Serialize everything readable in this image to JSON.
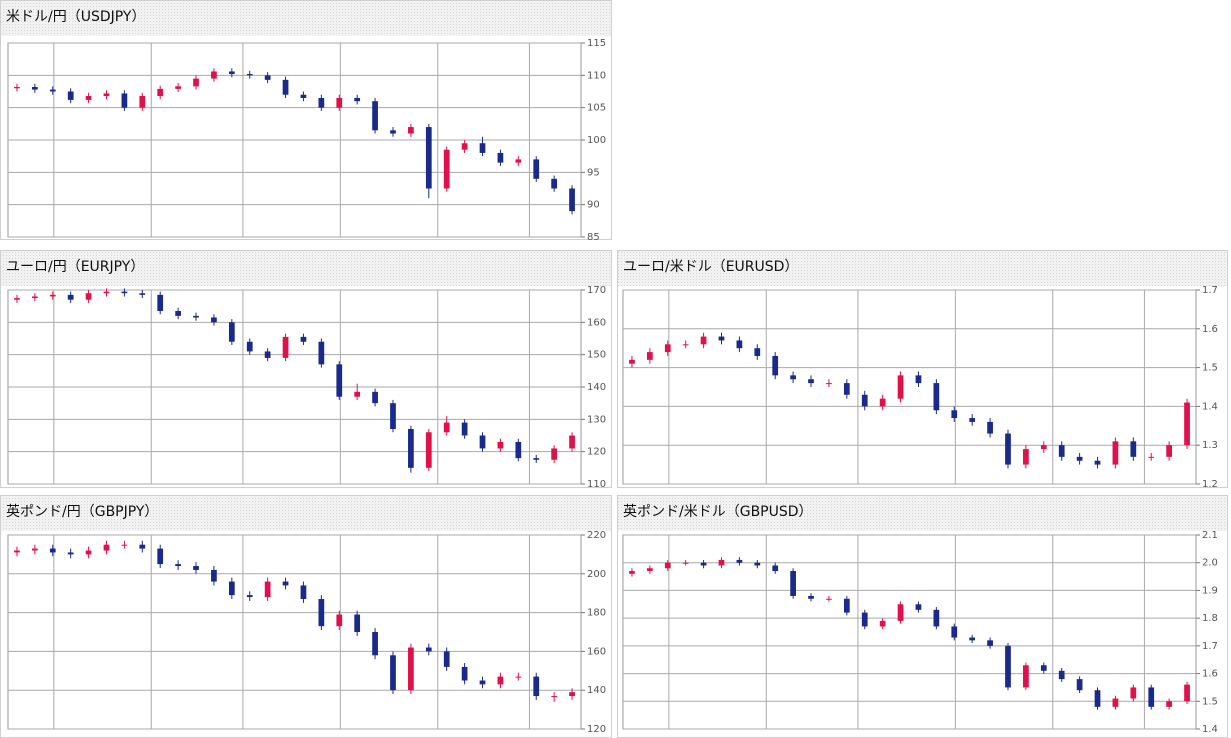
{
  "chart_data": [
    {
      "type": "candlestick",
      "title": "米ドル/円（USDJPY）",
      "up_color": "#e0104a",
      "down_color": "#1a2a8a",
      "grid": true,
      "ylim": [
        85,
        115
      ],
      "yticks": [
        85,
        90,
        95,
        100,
        105,
        110,
        115
      ],
      "open": [
        108.0,
        108.2,
        107.8,
        107.5,
        106.2,
        106.8,
        107.2,
        105.0,
        106.8,
        107.9,
        108.3,
        109.5,
        110.6,
        110.2,
        110.0,
        109.3,
        107.0,
        106.5,
        105.0,
        106.5,
        106.0,
        101.5,
        101.0,
        102.0,
        92.5,
        98.5,
        99.5,
        98.0,
        96.5,
        97.0,
        94.0,
        92.5
      ],
      "high": [
        108.7,
        108.7,
        108.3,
        108.0,
        107.3,
        107.7,
        107.7,
        107.3,
        108.4,
        108.8,
        110.0,
        111.1,
        111.1,
        110.7,
        110.5,
        109.8,
        107.5,
        107.0,
        107.0,
        107.0,
        106.5,
        102.0,
        102.5,
        102.5,
        99.0,
        100.0,
        100.5,
        98.5,
        97.5,
        97.5,
        94.5,
        93.0
      ],
      "low": [
        107.5,
        107.3,
        107.0,
        105.7,
        105.7,
        106.3,
        104.5,
        104.5,
        106.3,
        107.4,
        107.8,
        109.0,
        109.7,
        109.5,
        108.8,
        106.5,
        106.0,
        104.5,
        104.5,
        105.5,
        101.0,
        100.5,
        100.5,
        91.0,
        92.0,
        98.0,
        97.5,
        96.0,
        96.0,
        93.5,
        92.0,
        88.5
      ],
      "close": [
        108.2,
        107.8,
        107.5,
        106.2,
        106.8,
        107.2,
        105.0,
        106.8,
        107.9,
        108.3,
        109.5,
        110.6,
        110.2,
        110.0,
        109.3,
        107.0,
        106.5,
        105.0,
        106.5,
        106.0,
        101.5,
        101.0,
        102.0,
        92.5,
        98.5,
        99.5,
        98.0,
        96.5,
        97.0,
        94.0,
        92.5,
        89.0
      ]
    },
    {
      "type": "candlestick",
      "title": "ユーロ/円（EURJPY）",
      "up_color": "#e0104a",
      "down_color": "#1a2a8a",
      "grid": true,
      "ylim": [
        110,
        170
      ],
      "yticks": [
        110,
        120,
        130,
        140,
        150,
        160,
        170
      ],
      "open": [
        167.0,
        167.5,
        168.0,
        168.5,
        167.0,
        169.0,
        169.5,
        169.0,
        168.5,
        163.5,
        162.0,
        161.5,
        160.0,
        154.0,
        151.0,
        149.0,
        155.5,
        154.0,
        147.0,
        137.0,
        138.5,
        135.0,
        127.0,
        115.0,
        126.0,
        129.0,
        125.0,
        121.0,
        123.0,
        118.0,
        117.5,
        121.0
      ],
      "high": [
        168.5,
        169.0,
        169.5,
        169.5,
        170.0,
        170.5,
        170.5,
        170.0,
        169.5,
        164.5,
        163.0,
        162.5,
        161.0,
        155.0,
        152.0,
        156.5,
        156.5,
        155.0,
        148.0,
        141.0,
        139.5,
        136.0,
        128.0,
        127.0,
        131.0,
        130.0,
        126.0,
        124.0,
        124.0,
        119.0,
        122.0,
        126.0
      ],
      "low": [
        166.0,
        166.5,
        167.0,
        166.0,
        166.0,
        168.0,
        168.0,
        167.5,
        162.5,
        161.0,
        160.5,
        159.0,
        153.0,
        150.0,
        148.0,
        148.0,
        153.0,
        146.0,
        136.0,
        136.0,
        134.0,
        126.0,
        113.5,
        114.0,
        125.0,
        124.0,
        120.0,
        120.0,
        117.0,
        116.5,
        116.5,
        120.0
      ],
      "close": [
        167.5,
        168.0,
        168.5,
        167.0,
        169.0,
        169.5,
        169.0,
        168.5,
        163.5,
        162.0,
        161.5,
        160.0,
        154.0,
        151.0,
        149.0,
        155.5,
        154.0,
        147.0,
        137.0,
        138.5,
        135.0,
        127.0,
        115.0,
        126.0,
        129.0,
        125.0,
        121.0,
        123.0,
        118.0,
        117.5,
        121.0,
        125.0
      ]
    },
    {
      "type": "candlestick",
      "title": "ユーロ/米ドル（EURUSD）",
      "up_color": "#e0104a",
      "down_color": "#1a2a8a",
      "grid": true,
      "ylim": [
        1.2,
        1.7
      ],
      "yticks": [
        1.2,
        1.3,
        1.4,
        1.5,
        1.6,
        1.7
      ],
      "open": [
        1.51,
        1.52,
        1.54,
        1.56,
        1.56,
        1.58,
        1.57,
        1.55,
        1.53,
        1.48,
        1.47,
        1.46,
        1.46,
        1.43,
        1.4,
        1.42,
        1.48,
        1.46,
        1.39,
        1.37,
        1.36,
        1.33,
        1.25,
        1.29,
        1.3,
        1.27,
        1.26,
        1.25,
        1.31,
        1.27,
        1.27,
        1.3
      ],
      "high": [
        1.53,
        1.55,
        1.57,
        1.57,
        1.59,
        1.59,
        1.58,
        1.56,
        1.54,
        1.49,
        1.48,
        1.47,
        1.47,
        1.44,
        1.43,
        1.49,
        1.49,
        1.47,
        1.4,
        1.38,
        1.37,
        1.34,
        1.3,
        1.31,
        1.31,
        1.28,
        1.27,
        1.32,
        1.32,
        1.28,
        1.31,
        1.42
      ],
      "low": [
        1.5,
        1.51,
        1.53,
        1.55,
        1.55,
        1.56,
        1.54,
        1.52,
        1.47,
        1.46,
        1.45,
        1.45,
        1.42,
        1.39,
        1.39,
        1.41,
        1.45,
        1.38,
        1.36,
        1.35,
        1.32,
        1.24,
        1.24,
        1.28,
        1.26,
        1.25,
        1.24,
        1.24,
        1.26,
        1.26,
        1.26,
        1.29
      ],
      "close": [
        1.52,
        1.54,
        1.56,
        1.56,
        1.58,
        1.57,
        1.55,
        1.53,
        1.48,
        1.47,
        1.46,
        1.46,
        1.43,
        1.4,
        1.42,
        1.48,
        1.46,
        1.39,
        1.37,
        1.36,
        1.33,
        1.25,
        1.29,
        1.3,
        1.27,
        1.26,
        1.25,
        1.31,
        1.27,
        1.27,
        1.3,
        1.41
      ]
    },
    {
      "type": "candlestick",
      "title": "英ポンド/円（GBPJPY）",
      "up_color": "#e0104a",
      "down_color": "#1a2a8a",
      "grid": true,
      "ylim": [
        120,
        220
      ],
      "yticks": [
        120,
        140,
        160,
        180,
        200,
        220
      ],
      "open": [
        211,
        212,
        213,
        211,
        210,
        212,
        215,
        215,
        213,
        205,
        204,
        202,
        196,
        189,
        188,
        196,
        194,
        187,
        173,
        179,
        170,
        158,
        140,
        162,
        160,
        152,
        145,
        143,
        147,
        147,
        137,
        137
      ],
      "high": [
        214,
        215,
        215,
        213,
        214,
        217,
        217,
        217,
        215,
        207,
        206,
        204,
        198,
        191,
        198,
        198,
        196,
        189,
        181,
        181,
        172,
        160,
        164,
        164,
        162,
        154,
        147,
        149,
        149,
        149,
        139,
        141
      ],
      "low": [
        209,
        210,
        209,
        208,
        208,
        210,
        213,
        211,
        203,
        202,
        200,
        194,
        187,
        186,
        186,
        192,
        185,
        171,
        171,
        168,
        156,
        138,
        138,
        158,
        150,
        143,
        141,
        141,
        145,
        135,
        134,
        135
      ],
      "close": [
        212,
        213,
        211,
        210,
        212,
        215,
        215,
        213,
        205,
        204,
        202,
        196,
        189,
        188,
        196,
        194,
        187,
        173,
        179,
        170,
        158,
        140,
        162,
        160,
        152,
        145,
        143,
        147,
        147,
        137,
        137,
        139
      ]
    },
    {
      "type": "candlestick",
      "title": "英ポンド/米ドル（GBPUSD）",
      "up_color": "#e0104a",
      "down_color": "#1a2a8a",
      "grid": true,
      "ylim": [
        1.4,
        2.1
      ],
      "yticks": [
        1.4,
        1.5,
        1.6,
        1.7,
        1.8,
        1.9,
        {
          "value": 2,
          "label": "2.0"
        },
        2.1
      ],
      "open": [
        1.96,
        1.97,
        1.98,
        2.0,
        2.0,
        1.99,
        2.01,
        2.0,
        1.99,
        1.97,
        1.88,
        1.87,
        1.87,
        1.82,
        1.77,
        1.79,
        1.85,
        1.83,
        1.77,
        1.73,
        1.72,
        1.7,
        1.55,
        1.63,
        1.61,
        1.58,
        1.54,
        1.48,
        1.51,
        1.55,
        1.48,
        1.5
      ],
      "high": [
        1.98,
        1.99,
        2.01,
        2.01,
        2.01,
        2.02,
        2.02,
        2.01,
        2.0,
        1.98,
        1.89,
        1.88,
        1.88,
        1.83,
        1.8,
        1.86,
        1.86,
        1.84,
        1.78,
        1.74,
        1.73,
        1.71,
        1.64,
        1.64,
        1.62,
        1.59,
        1.55,
        1.52,
        1.56,
        1.56,
        1.51,
        1.57
      ],
      "low": [
        1.95,
        1.96,
        1.97,
        1.99,
        1.98,
        1.98,
        1.99,
        1.98,
        1.96,
        1.87,
        1.86,
        1.86,
        1.81,
        1.76,
        1.76,
        1.78,
        1.82,
        1.76,
        1.72,
        1.71,
        1.69,
        1.54,
        1.54,
        1.6,
        1.57,
        1.53,
        1.47,
        1.47,
        1.5,
        1.47,
        1.47,
        1.49
      ],
      "close": [
        1.97,
        1.98,
        2.0,
        2.0,
        1.99,
        2.01,
        2.0,
        1.99,
        1.97,
        1.88,
        1.87,
        1.87,
        1.82,
        1.77,
        1.79,
        1.85,
        1.83,
        1.77,
        1.73,
        1.72,
        1.7,
        1.55,
        1.63,
        1.61,
        1.58,
        1.54,
        1.48,
        1.51,
        1.55,
        1.48,
        1.5,
        1.56
      ]
    }
  ]
}
